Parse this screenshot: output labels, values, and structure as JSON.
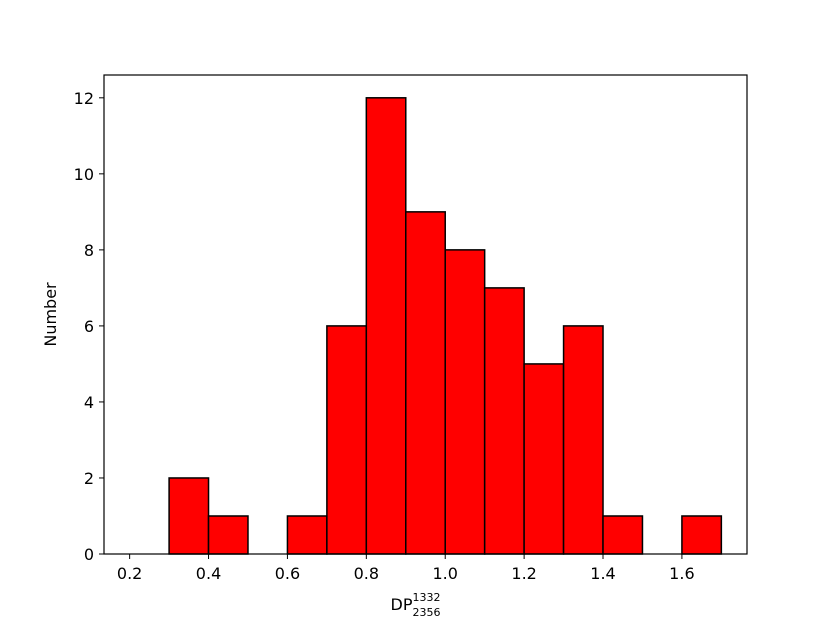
{
  "chart_data": {
    "type": "bar",
    "subtype": "histogram",
    "title": "",
    "xlabel": "DP",
    "xlabel_sup": "1332",
    "xlabel_sub": "2356",
    "ylabel": "Number",
    "bin_width": 0.1,
    "bins": [
      {
        "x0": 0.1,
        "x1": 0.2,
        "count": 0
      },
      {
        "x0": 0.2,
        "x1": 0.3,
        "count": 0
      },
      {
        "x0": 0.3,
        "x1": 0.4,
        "count": 2
      },
      {
        "x0": 0.4,
        "x1": 0.5,
        "count": 1
      },
      {
        "x0": 0.5,
        "x1": 0.6,
        "count": 0
      },
      {
        "x0": 0.6,
        "x1": 0.7,
        "count": 1
      },
      {
        "x0": 0.7,
        "x1": 0.8,
        "count": 6
      },
      {
        "x0": 0.8,
        "x1": 0.9,
        "count": 12
      },
      {
        "x0": 0.9,
        "x1": 1.0,
        "count": 9
      },
      {
        "x0": 1.0,
        "x1": 1.1,
        "count": 8
      },
      {
        "x0": 1.1,
        "x1": 1.2,
        "count": 7
      },
      {
        "x0": 1.2,
        "x1": 1.3,
        "count": 5
      },
      {
        "x0": 1.3,
        "x1": 1.4,
        "count": 6
      },
      {
        "x0": 1.4,
        "x1": 1.5,
        "count": 1
      },
      {
        "x0": 1.5,
        "x1": 1.6,
        "count": 0
      },
      {
        "x0": 1.6,
        "x1": 1.7,
        "count": 1
      }
    ],
    "xlim": [
      0.135,
      1.765
    ],
    "ylim": [
      0,
      12.6
    ],
    "xticks": [
      "0.2",
      "0.4",
      "0.6",
      "0.8",
      "1.0",
      "1.2",
      "1.4",
      "1.6"
    ],
    "yticks": [
      "0",
      "2",
      "4",
      "6",
      "8",
      "10",
      "12"
    ],
    "grid": false,
    "bar_color": "#ff0000",
    "edge_color": "#000000"
  }
}
